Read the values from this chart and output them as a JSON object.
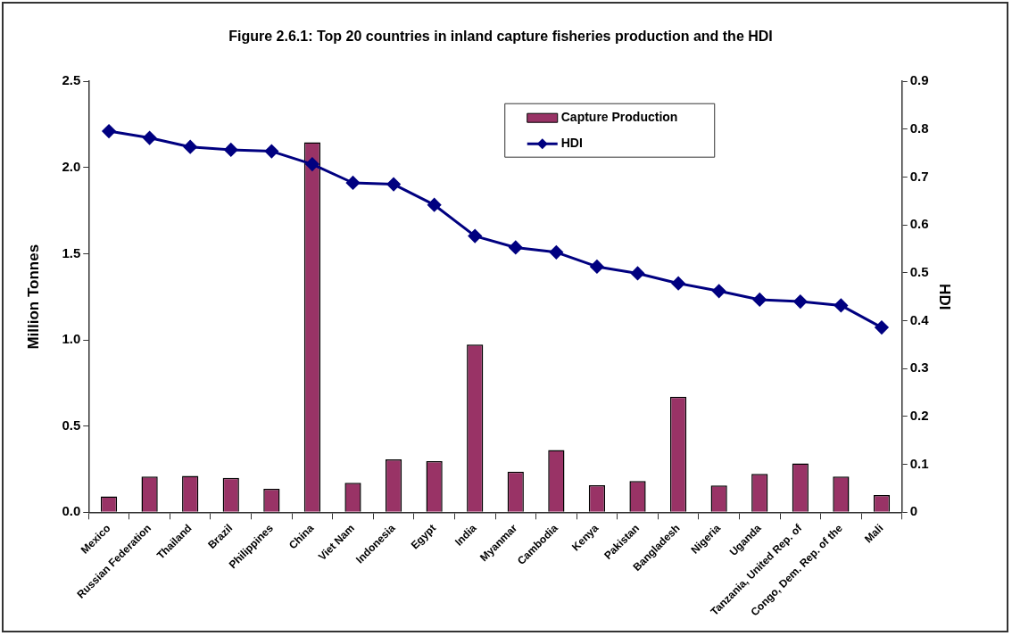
{
  "chart_data": {
    "type": "bar",
    "title": "Figure 2.6.1: Top 20 countries in inland capture fisheries production and the HDI",
    "ylabel": "Million Tonnes",
    "y2label": "HDI",
    "categories": [
      "Mexico",
      "Russian Federation",
      "Thailand",
      "Brazil",
      "Philippines",
      "China",
      "Viet Nam",
      "Indonesia",
      "Egypt",
      "India",
      "Myanmar",
      "Cambodia",
      "Kenya",
      "Pakistan",
      "Bangladesh",
      "Nigeria",
      "Uganda",
      "Tanzania, United Rep. of",
      "Congo, Dem. Rep. of the",
      "Mali"
    ],
    "series": [
      {
        "name": "Capture Production",
        "color": "#993366",
        "values": [
          0.092,
          0.207,
          0.211,
          0.2,
          0.136,
          2.146,
          0.171,
          0.307,
          0.296,
          0.973,
          0.236,
          0.361,
          0.157,
          0.182,
          0.671,
          0.155,
          0.223,
          0.284,
          0.207,
          0.1
        ]
      },
      {
        "name": "HDI",
        "type": "line",
        "axis": "y2",
        "color": "#000080",
        "marker": "diamond",
        "values": [
          0.796,
          0.782,
          0.763,
          0.757,
          0.754,
          0.727,
          0.688,
          0.685,
          0.642,
          0.577,
          0.553,
          0.543,
          0.513,
          0.499,
          0.478,
          0.462,
          0.444,
          0.44,
          0.432,
          0.386
        ]
      }
    ],
    "ylim": [
      0,
      2.5
    ],
    "yticks": [
      {
        "value": 0,
        "label": "0.0"
      },
      {
        "value": 0.5,
        "label": "0.5"
      },
      {
        "value": 1,
        "label": "1.0"
      },
      {
        "value": 1.5,
        "label": "1.5"
      },
      {
        "value": 2,
        "label": "2.0"
      },
      {
        "value": 2.5,
        "label": "2.5"
      }
    ],
    "y2lim": [
      0,
      0.9
    ],
    "y2ticks": [
      0,
      0.1,
      0.2,
      0.3,
      0.4,
      0.5,
      0.6,
      0.7,
      0.8,
      0.9
    ],
    "grid": false,
    "legend": "top right"
  }
}
